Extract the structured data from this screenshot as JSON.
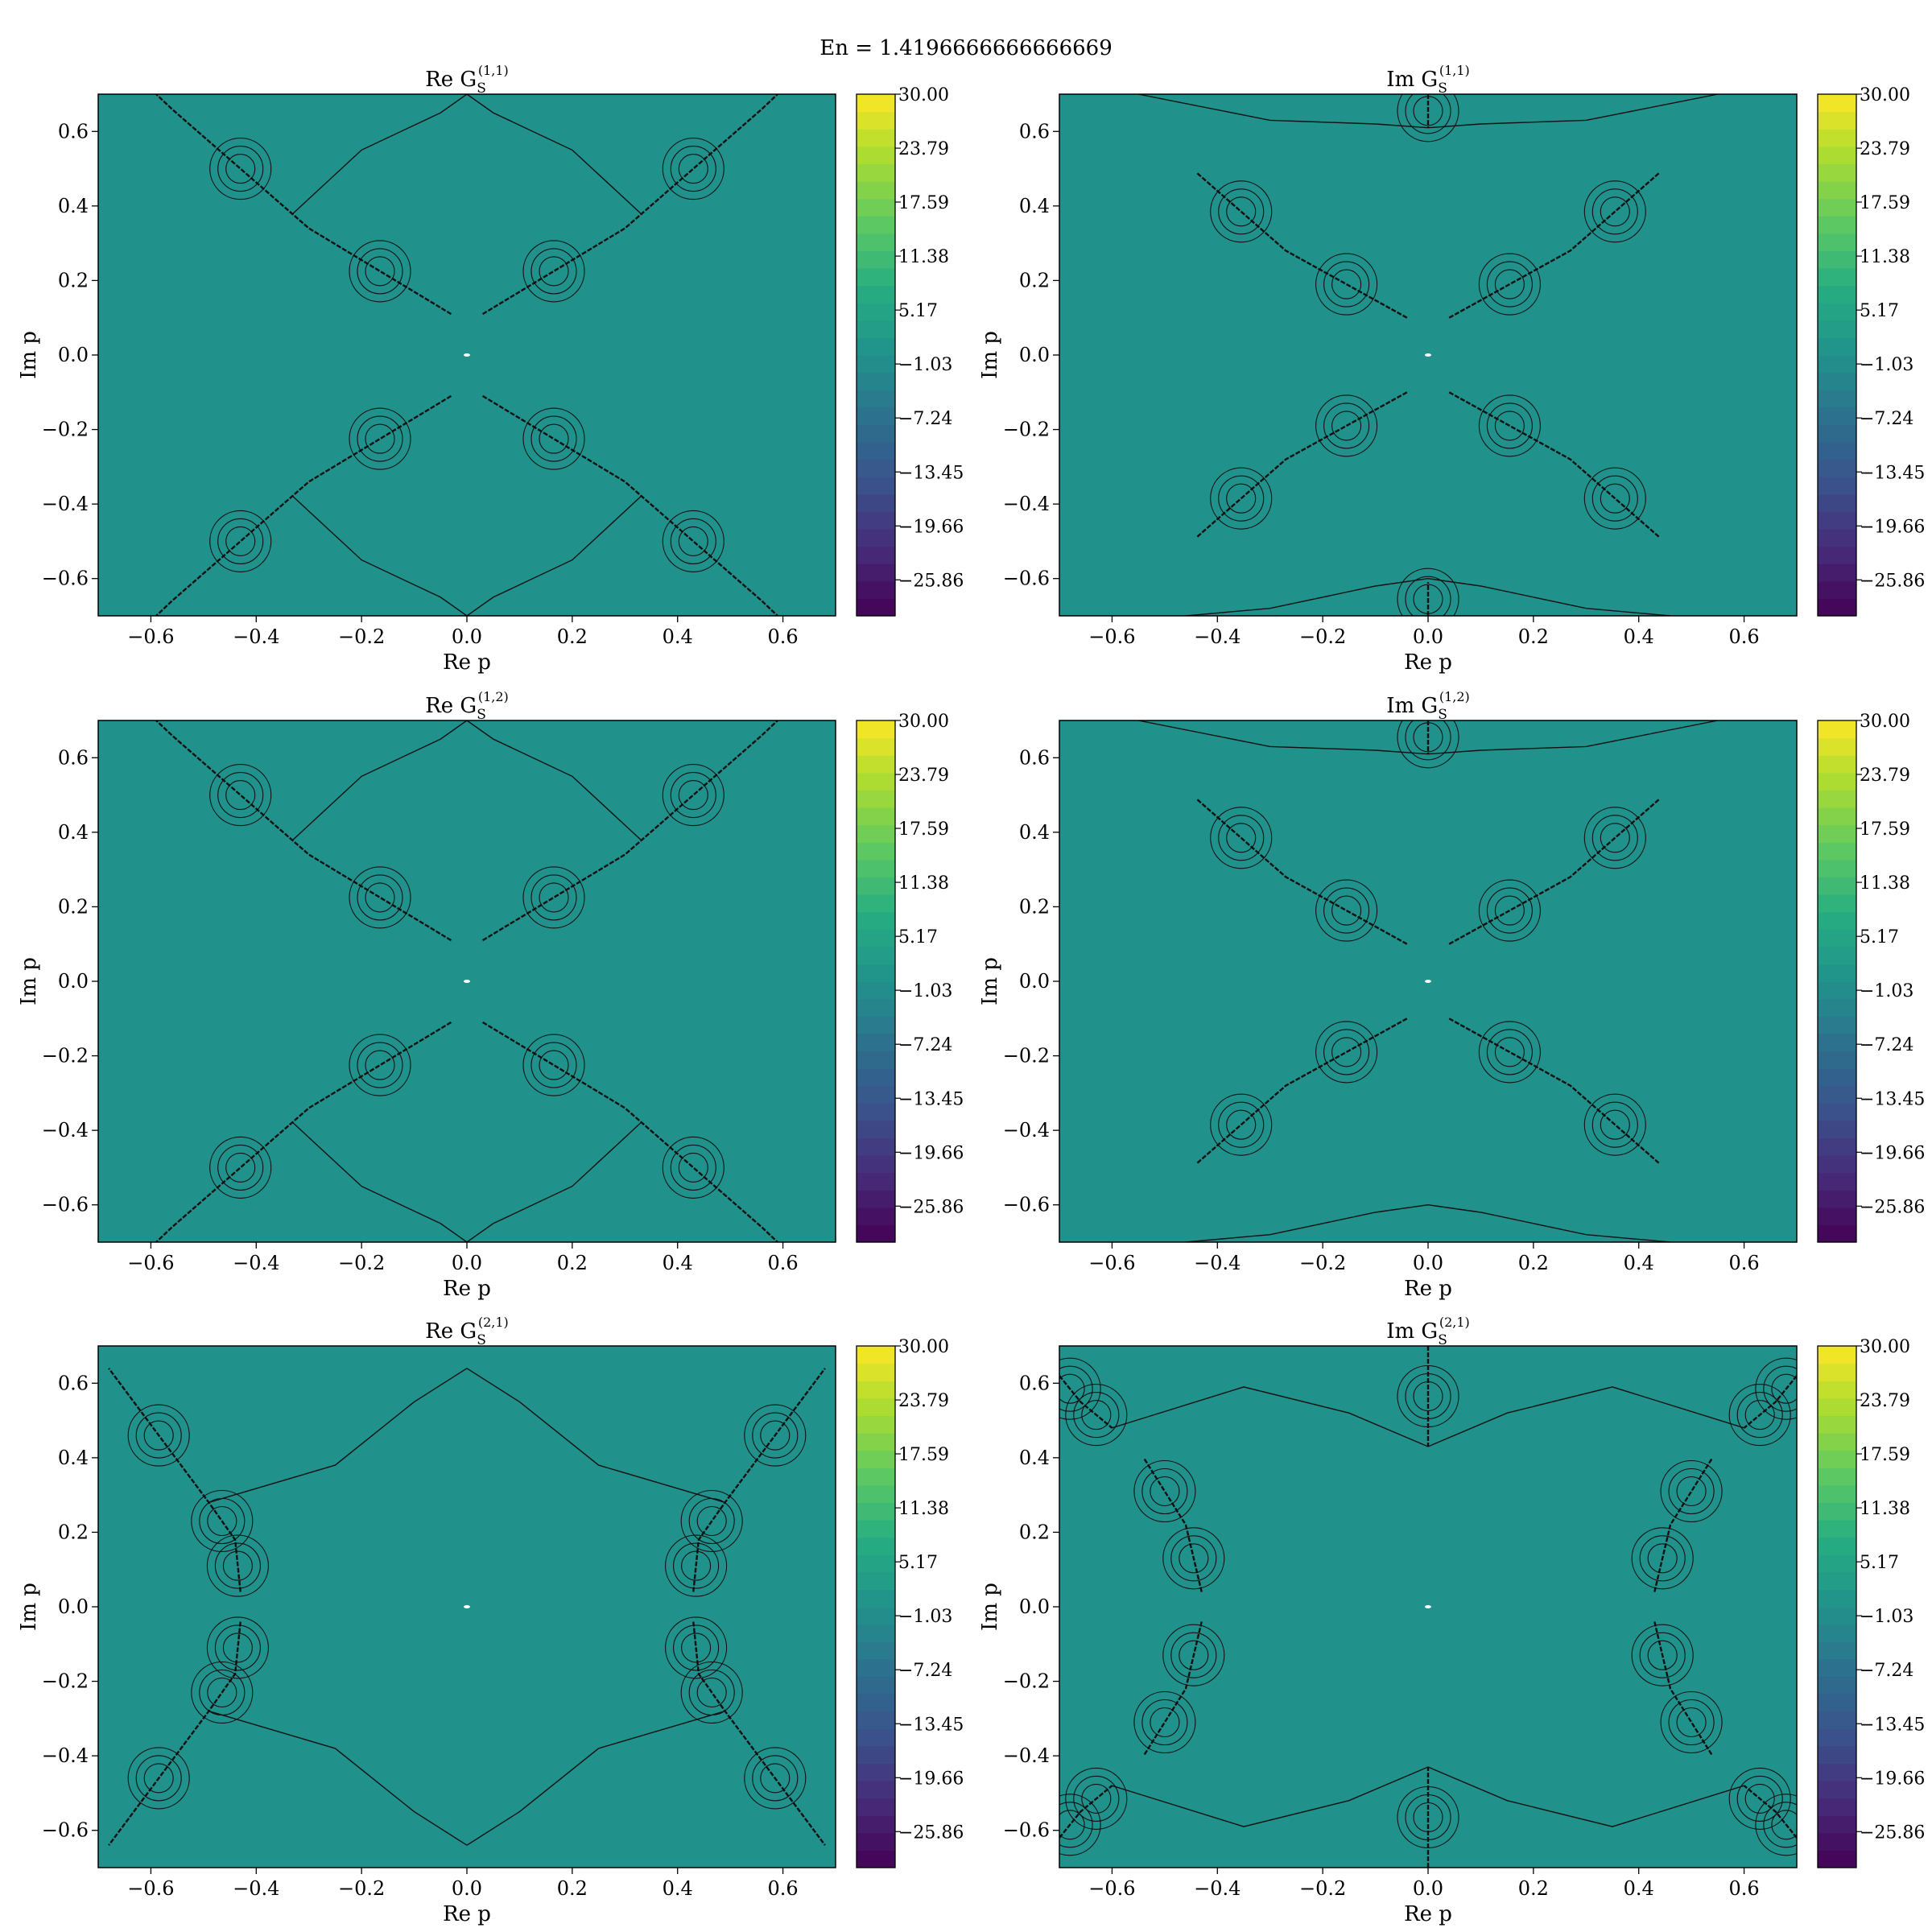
{
  "suptitle": "En = 1.4196666666666669",
  "colors": {
    "field": "#21918c",
    "contour": "#111111"
  },
  "colorbar": {
    "colormap": "viridis",
    "range": [
      -30,
      30
    ],
    "levels": 30,
    "tick_labels": [
      "30.00",
      "23.79",
      "17.59",
      "11.38",
      "5.17",
      "−1.03",
      "−7.24",
      "−13.45",
      "−19.66",
      "−25.86"
    ],
    "tick_values": [
      30.0,
      23.79,
      17.59,
      11.38,
      5.17,
      -1.03,
      -7.24,
      -13.45,
      -19.66,
      -25.86
    ]
  },
  "chart_data": [
    {
      "type": "heatmap",
      "title": "Re G_S^(1,1)",
      "title_main": "Re G",
      "title_sub": "S",
      "title_sup": "(1,1)",
      "xlabel": "Re p",
      "ylabel": "Im p",
      "xlim": [
        -0.7,
        0.7
      ],
      "ylim": [
        -0.7,
        0.7
      ],
      "xticks": [
        -0.6,
        -0.4,
        -0.2,
        0.0,
        0.2,
        0.4,
        0.6
      ],
      "yticks": [
        -0.6,
        -0.4,
        -0.2,
        0.0,
        0.2,
        0.4,
        0.6
      ],
      "xtick_labels": [
        "−0.6",
        "−0.4",
        "−0.2",
        "0.0",
        "0.2",
        "0.4",
        "0.6"
      ],
      "ytick_labels": [
        "−0.6",
        "−0.4",
        "−0.2",
        "0.0",
        "0.2",
        "0.4",
        "0.6"
      ],
      "singular_lines": [
        [
          [
            -0.03,
            0.11
          ],
          [
            -0.3,
            0.34
          ],
          [
            -0.56,
            0.66
          ],
          [
            -0.59,
            0.7
          ]
        ],
        [
          [
            0.03,
            0.11
          ],
          [
            0.3,
            0.34
          ],
          [
            0.56,
            0.66
          ],
          [
            0.59,
            0.7
          ]
        ],
        [
          [
            -0.03,
            -0.11
          ],
          [
            -0.3,
            -0.34
          ],
          [
            -0.56,
            -0.66
          ],
          [
            -0.59,
            -0.7
          ]
        ],
        [
          [
            0.03,
            -0.11
          ],
          [
            0.3,
            -0.34
          ],
          [
            0.56,
            -0.66
          ],
          [
            0.59,
            -0.7
          ]
        ]
      ],
      "contour_lines": [
        [
          [
            -0.33,
            0.38
          ],
          [
            -0.2,
            0.55
          ],
          [
            -0.05,
            0.65
          ],
          [
            0.0,
            0.7
          ]
        ],
        [
          [
            0.33,
            0.38
          ],
          [
            0.2,
            0.55
          ],
          [
            0.05,
            0.65
          ],
          [
            0.0,
            0.7
          ]
        ],
        [
          [
            -0.33,
            -0.38
          ],
          [
            -0.2,
            -0.55
          ],
          [
            -0.05,
            -0.65
          ],
          [
            0.0,
            -0.7
          ]
        ],
        [
          [
            0.33,
            -0.38
          ],
          [
            0.2,
            -0.55
          ],
          [
            0.05,
            -0.65
          ],
          [
            0.0,
            -0.7
          ]
        ]
      ]
    },
    {
      "type": "heatmap",
      "title": "Im G_S^(1,1)",
      "title_main": "Im G",
      "title_sub": "S",
      "title_sup": "(1,1)",
      "xlabel": "Re p",
      "ylabel": "Im p",
      "xlim": [
        -0.7,
        0.7
      ],
      "ylim": [
        -0.7,
        0.7
      ],
      "xticks": [
        -0.6,
        -0.4,
        -0.2,
        0.0,
        0.2,
        0.4,
        0.6
      ],
      "yticks": [
        -0.6,
        -0.4,
        -0.2,
        0.0,
        0.2,
        0.4,
        0.6
      ],
      "xtick_labels": [
        "−0.6",
        "−0.4",
        "−0.2",
        "0.0",
        "0.2",
        "0.4",
        "0.6"
      ],
      "ytick_labels": [
        "−0.6",
        "−0.4",
        "−0.2",
        "0.0",
        "0.2",
        "0.4",
        "0.6"
      ],
      "singular_lines": [
        [
          [
            -0.04,
            0.1
          ],
          [
            -0.27,
            0.28
          ],
          [
            -0.44,
            0.49
          ]
        ],
        [
          [
            0.04,
            0.1
          ],
          [
            0.27,
            0.28
          ],
          [
            0.44,
            0.49
          ]
        ],
        [
          [
            -0.04,
            -0.1
          ],
          [
            -0.27,
            -0.28
          ],
          [
            -0.44,
            -0.49
          ]
        ],
        [
          [
            0.04,
            -0.1
          ],
          [
            0.27,
            -0.28
          ],
          [
            0.44,
            -0.49
          ]
        ],
        [
          [
            0.0,
            0.7
          ],
          [
            0.0,
            0.61
          ]
        ],
        [
          [
            0.0,
            -0.7
          ],
          [
            0.0,
            -0.61
          ]
        ]
      ],
      "contour_lines": [
        [
          [
            -0.55,
            0.7
          ],
          [
            -0.3,
            0.63
          ],
          [
            -0.1,
            0.62
          ],
          [
            0.0,
            0.61
          ]
        ],
        [
          [
            0.55,
            0.7
          ],
          [
            0.3,
            0.63
          ],
          [
            0.1,
            0.62
          ],
          [
            0.0,
            0.61
          ]
        ],
        [
          [
            -0.46,
            -0.7
          ],
          [
            -0.3,
            -0.68
          ],
          [
            -0.1,
            -0.62
          ],
          [
            0.0,
            -0.6
          ]
        ],
        [
          [
            0.46,
            -0.7
          ],
          [
            0.3,
            -0.68
          ],
          [
            0.1,
            -0.62
          ],
          [
            0.0,
            -0.6
          ]
        ]
      ]
    },
    {
      "type": "heatmap",
      "title": "Re G_S^(1,2)",
      "title_main": "Re G",
      "title_sub": "S",
      "title_sup": "(1,2)",
      "xlabel": "Re p",
      "ylabel": "Im p",
      "xlim": [
        -0.7,
        0.7
      ],
      "ylim": [
        -0.7,
        0.7
      ],
      "xticks": [
        -0.6,
        -0.4,
        -0.2,
        0.0,
        0.2,
        0.4,
        0.6
      ],
      "yticks": [
        -0.6,
        -0.4,
        -0.2,
        0.0,
        0.2,
        0.4,
        0.6
      ],
      "xtick_labels": [
        "−0.6",
        "−0.4",
        "−0.2",
        "0.0",
        "0.2",
        "0.4",
        "0.6"
      ],
      "ytick_labels": [
        "−0.6",
        "−0.4",
        "−0.2",
        "0.0",
        "0.2",
        "0.4",
        "0.6"
      ],
      "singular_lines": [
        [
          [
            -0.03,
            0.11
          ],
          [
            -0.3,
            0.34
          ],
          [
            -0.56,
            0.66
          ],
          [
            -0.59,
            0.7
          ]
        ],
        [
          [
            0.03,
            0.11
          ],
          [
            0.3,
            0.34
          ],
          [
            0.56,
            0.66
          ],
          [
            0.59,
            0.7
          ]
        ],
        [
          [
            -0.03,
            -0.11
          ],
          [
            -0.3,
            -0.34
          ],
          [
            -0.56,
            -0.66
          ],
          [
            -0.59,
            -0.7
          ]
        ],
        [
          [
            0.03,
            -0.11
          ],
          [
            0.3,
            -0.34
          ],
          [
            0.56,
            -0.66
          ],
          [
            0.59,
            -0.7
          ]
        ]
      ],
      "contour_lines": [
        [
          [
            -0.33,
            0.38
          ],
          [
            -0.2,
            0.55
          ],
          [
            -0.05,
            0.65
          ],
          [
            0.0,
            0.7
          ]
        ],
        [
          [
            0.33,
            0.38
          ],
          [
            0.2,
            0.55
          ],
          [
            0.05,
            0.65
          ],
          [
            0.0,
            0.7
          ]
        ],
        [
          [
            -0.33,
            -0.38
          ],
          [
            -0.2,
            -0.55
          ],
          [
            -0.05,
            -0.65
          ],
          [
            0.0,
            -0.7
          ]
        ],
        [
          [
            0.33,
            -0.38
          ],
          [
            0.2,
            -0.55
          ],
          [
            0.05,
            -0.65
          ],
          [
            0.0,
            -0.7
          ]
        ]
      ]
    },
    {
      "type": "heatmap",
      "title": "Im G_S^(1,2)",
      "title_main": "Im G",
      "title_sub": "S",
      "title_sup": "(1,2)",
      "xlabel": "Re p",
      "ylabel": "Im p",
      "xlim": [
        -0.7,
        0.7
      ],
      "ylim": [
        -0.7,
        0.7
      ],
      "xticks": [
        -0.6,
        -0.4,
        -0.2,
        0.0,
        0.2,
        0.4,
        0.6
      ],
      "yticks": [
        -0.6,
        -0.4,
        -0.2,
        0.0,
        0.2,
        0.4,
        0.6
      ],
      "xtick_labels": [
        "−0.6",
        "−0.4",
        "−0.2",
        "0.0",
        "0.2",
        "0.4",
        "0.6"
      ],
      "ytick_labels": [
        "−0.6",
        "−0.4",
        "−0.2",
        "0.0",
        "0.2",
        "0.4",
        "0.6"
      ],
      "singular_lines": [
        [
          [
            -0.04,
            0.1
          ],
          [
            -0.27,
            0.28
          ],
          [
            -0.44,
            0.49
          ]
        ],
        [
          [
            0.04,
            0.1
          ],
          [
            0.27,
            0.28
          ],
          [
            0.44,
            0.49
          ]
        ],
        [
          [
            -0.04,
            -0.1
          ],
          [
            -0.27,
            -0.28
          ],
          [
            -0.44,
            -0.49
          ]
        ],
        [
          [
            0.04,
            -0.1
          ],
          [
            0.27,
            -0.28
          ],
          [
            0.44,
            -0.49
          ]
        ],
        [
          [
            0.0,
            0.7
          ],
          [
            0.0,
            0.61
          ]
        ]
      ],
      "contour_lines": [
        [
          [
            -0.55,
            0.7
          ],
          [
            -0.3,
            0.63
          ],
          [
            -0.1,
            0.62
          ],
          [
            0.0,
            0.61
          ]
        ],
        [
          [
            0.55,
            0.7
          ],
          [
            0.3,
            0.63
          ],
          [
            0.1,
            0.62
          ],
          [
            0.0,
            0.61
          ]
        ],
        [
          [
            -0.46,
            -0.7
          ],
          [
            -0.3,
            -0.68
          ],
          [
            -0.1,
            -0.62
          ],
          [
            0.0,
            -0.6
          ]
        ],
        [
          [
            0.46,
            -0.7
          ],
          [
            0.3,
            -0.68
          ],
          [
            0.1,
            -0.62
          ],
          [
            0.0,
            -0.6
          ]
        ]
      ]
    },
    {
      "type": "heatmap",
      "title": "Re G_S^(2,1)",
      "title_main": "Re G",
      "title_sub": "S",
      "title_sup": "(2,1)",
      "xlabel": "Re p",
      "ylabel": "Im p",
      "xlim": [
        -0.7,
        0.7
      ],
      "ylim": [
        -0.7,
        0.7
      ],
      "xticks": [
        -0.6,
        -0.4,
        -0.2,
        0.0,
        0.2,
        0.4,
        0.6
      ],
      "yticks": [
        -0.6,
        -0.4,
        -0.2,
        0.0,
        0.2,
        0.4,
        0.6
      ],
      "xtick_labels": [
        "−0.6",
        "−0.4",
        "−0.2",
        "0.0",
        "0.2",
        "0.4",
        "0.6"
      ],
      "ytick_labels": [
        "−0.6",
        "−0.4",
        "−0.2",
        "0.0",
        "0.2",
        "0.4",
        "0.6"
      ],
      "singular_lines": [
        [
          [
            -0.43,
            0.04
          ],
          [
            -0.44,
            0.18
          ],
          [
            -0.49,
            0.28
          ],
          [
            -0.68,
            0.64
          ]
        ],
        [
          [
            0.43,
            0.04
          ],
          [
            0.44,
            0.18
          ],
          [
            0.49,
            0.28
          ],
          [
            0.68,
            0.64
          ]
        ],
        [
          [
            -0.43,
            -0.04
          ],
          [
            -0.44,
            -0.18
          ],
          [
            -0.49,
            -0.28
          ],
          [
            -0.68,
            -0.64
          ]
        ],
        [
          [
            0.43,
            -0.04
          ],
          [
            0.44,
            -0.18
          ],
          [
            0.49,
            -0.28
          ],
          [
            0.68,
            -0.64
          ]
        ]
      ],
      "contour_lines": [
        [
          [
            -0.49,
            0.28
          ],
          [
            -0.25,
            0.38
          ],
          [
            -0.1,
            0.55
          ],
          [
            0.0,
            0.64
          ]
        ],
        [
          [
            0.49,
            0.28
          ],
          [
            0.25,
            0.38
          ],
          [
            0.1,
            0.55
          ],
          [
            0.0,
            0.64
          ]
        ],
        [
          [
            -0.49,
            -0.28
          ],
          [
            -0.25,
            -0.38
          ],
          [
            -0.1,
            -0.55
          ],
          [
            0.0,
            -0.64
          ]
        ],
        [
          [
            0.49,
            -0.28
          ],
          [
            0.25,
            -0.38
          ],
          [
            0.1,
            -0.55
          ],
          [
            0.0,
            -0.64
          ]
        ]
      ]
    },
    {
      "type": "heatmap",
      "title": "Im G_S^(2,1)",
      "title_main": "Im G",
      "title_sub": "S",
      "title_sup": "(2,1)",
      "xlabel": "Re p",
      "ylabel": "Im p",
      "xlim": [
        -0.7,
        0.7
      ],
      "ylim": [
        -0.7,
        0.7
      ],
      "xticks": [
        -0.6,
        -0.4,
        -0.2,
        0.0,
        0.2,
        0.4,
        0.6
      ],
      "yticks": [
        -0.6,
        -0.4,
        -0.2,
        0.0,
        0.2,
        0.4,
        0.6
      ],
      "xtick_labels": [
        "−0.6",
        "−0.4",
        "−0.2",
        "0.0",
        "0.2",
        "0.4",
        "0.6"
      ],
      "ytick_labels": [
        "−0.6",
        "−0.4",
        "−0.2",
        "0.0",
        "0.2",
        "0.4",
        "0.6"
      ],
      "singular_lines": [
        [
          [
            -0.43,
            0.04
          ],
          [
            -0.46,
            0.22
          ],
          [
            -0.54,
            0.4
          ]
        ],
        [
          [
            0.43,
            0.04
          ],
          [
            0.46,
            0.22
          ],
          [
            0.54,
            0.4
          ]
        ],
        [
          [
            -0.43,
            -0.04
          ],
          [
            -0.46,
            -0.22
          ],
          [
            -0.54,
            -0.4
          ]
        ],
        [
          [
            0.43,
            -0.04
          ],
          [
            0.46,
            -0.22
          ],
          [
            0.54,
            -0.4
          ]
        ],
        [
          [
            0.0,
            0.7
          ],
          [
            0.0,
            0.43
          ]
        ],
        [
          [
            0.0,
            -0.7
          ],
          [
            0.0,
            -0.43
          ]
        ],
        [
          [
            -0.7,
            0.62
          ],
          [
            -0.66,
            0.55
          ],
          [
            -0.6,
            0.48
          ]
        ],
        [
          [
            0.7,
            0.62
          ],
          [
            0.66,
            0.55
          ],
          [
            0.6,
            0.48
          ]
        ],
        [
          [
            -0.7,
            -0.62
          ],
          [
            -0.66,
            -0.55
          ],
          [
            -0.6,
            -0.48
          ]
        ],
        [
          [
            0.7,
            -0.62
          ],
          [
            0.66,
            -0.55
          ],
          [
            0.6,
            -0.48
          ]
        ]
      ],
      "contour_lines": [
        [
          [
            -0.6,
            0.48
          ],
          [
            -0.35,
            0.59
          ],
          [
            -0.15,
            0.52
          ],
          [
            0.0,
            0.43
          ]
        ],
        [
          [
            0.6,
            0.48
          ],
          [
            0.35,
            0.59
          ],
          [
            0.15,
            0.52
          ],
          [
            0.0,
            0.43
          ]
        ],
        [
          [
            -0.6,
            -0.48
          ],
          [
            -0.35,
            -0.59
          ],
          [
            -0.15,
            -0.52
          ],
          [
            0.0,
            -0.43
          ]
        ],
        [
          [
            0.6,
            -0.48
          ],
          [
            0.35,
            -0.59
          ],
          [
            0.15,
            -0.52
          ],
          [
            0.0,
            -0.43
          ]
        ]
      ]
    }
  ]
}
